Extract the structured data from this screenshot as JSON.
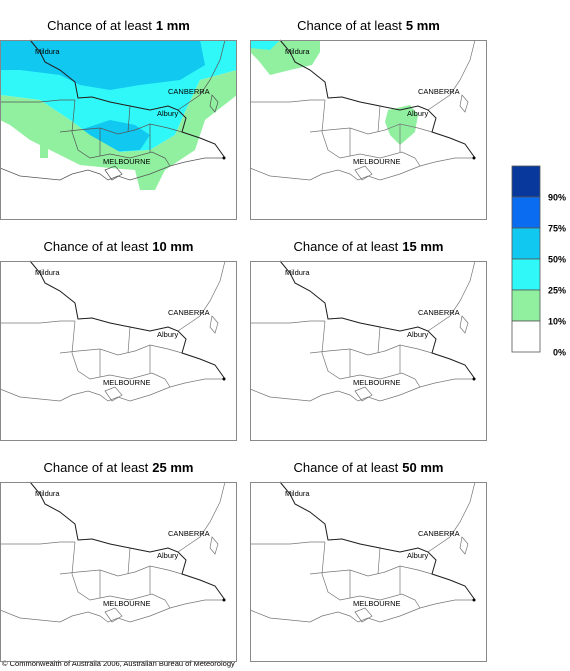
{
  "maps": [
    {
      "title_prefix": "Chance of at least",
      "title_amount": "1 mm",
      "places": [
        "Mildura",
        "CANBERRA",
        "Albury",
        "MELBOURNE"
      ]
    },
    {
      "title_prefix": "Chance of at least",
      "title_amount": "5 mm",
      "places": [
        "Mildura",
        "CANBERRA",
        "Albury",
        "MELBOURNE"
      ]
    },
    {
      "title_prefix": "Chance of at least",
      "title_amount": "10 mm",
      "places": [
        "Mildura",
        "CANBERRA",
        "Albury",
        "MELBOURNE"
      ]
    },
    {
      "title_prefix": "Chance of at least",
      "title_amount": "15 mm",
      "places": [
        "Mildura",
        "CANBERRA",
        "Albury",
        "MELBOURNE"
      ]
    },
    {
      "title_prefix": "Chance of at least",
      "title_amount": "25 mm",
      "places": [
        "Mildura",
        "CANBERRA",
        "Albury",
        "MELBOURNE"
      ]
    },
    {
      "title_prefix": "Chance of at least",
      "title_amount": "50 mm",
      "places": [
        "Mildura",
        "CANBERRA",
        "Albury",
        "MELBOURNE"
      ]
    }
  ],
  "legend": {
    "labels": [
      "90%",
      "75%",
      "50%",
      "25%",
      "10%",
      "0%"
    ],
    "colors": [
      "#08389c",
      "#0a6cf0",
      "#10c8f0",
      "#30f8f8",
      "#90f0a0",
      "#ffffff"
    ]
  },
  "footer": "© Commonwealth of Australia 2006, Australian Bureau of Meteorology"
}
